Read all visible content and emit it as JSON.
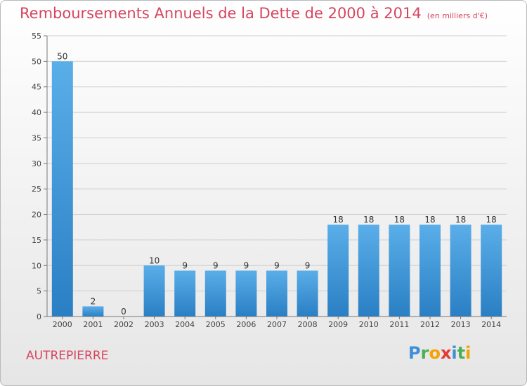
{
  "chart_data": {
    "type": "bar",
    "title": "Remboursements Annuels de la Dette de 2000 à 2014",
    "unit": "(en milliers d'€)",
    "categories": [
      "2000",
      "2001",
      "2002",
      "2003",
      "2004",
      "2005",
      "2006",
      "2007",
      "2008",
      "2009",
      "2010",
      "2011",
      "2012",
      "2013",
      "2014"
    ],
    "values": [
      50,
      2,
      0,
      10,
      9,
      9,
      9,
      9,
      9,
      18,
      18,
      18,
      18,
      18,
      18
    ],
    "ylim": [
      0,
      55
    ],
    "yticks": [
      0,
      5,
      10,
      15,
      20,
      25,
      30,
      35,
      40,
      45,
      50,
      55
    ],
    "grid": true,
    "xlabel": "",
    "ylabel": ""
  },
  "commune": "AUTREPIERRE",
  "logo": {
    "letters": [
      "P",
      "r",
      "o",
      "x",
      "i",
      "t",
      "i"
    ],
    "colors": [
      "#3d8fd9",
      "#4caf50",
      "#f4a300",
      "#e53935",
      "#3d8fd9",
      "#4caf50",
      "#f4a300"
    ]
  },
  "colors": {
    "bar_light": "#5aaee8",
    "bar_dark": "#2a7fc4",
    "accent": "#d8445e"
  }
}
